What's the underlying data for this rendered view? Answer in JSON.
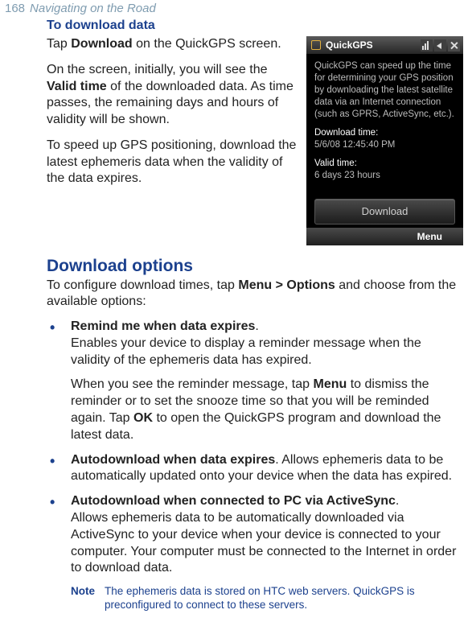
{
  "header": {
    "page_number": "168",
    "chapter_title": "Navigating on the Road"
  },
  "section": {
    "heading": "To download data"
  },
  "para1": {
    "pre": "Tap ",
    "b": "Download",
    "post": " on the QuickGPS screen."
  },
  "para2": {
    "pre": "On the screen, initially, you will see the ",
    "b": "Valid time",
    "post": " of the downloaded data. As time passes, the remaining days and hours of validity will be shown."
  },
  "para3": {
    "text": "To speed up GPS positioning, download the latest ephemeris data when the validity of the data expires."
  },
  "download_options": {
    "heading": "Download options",
    "intro_pre": "To configure download times, tap ",
    "intro_b": "Menu > Options",
    "intro_post": " and choose from the available options:"
  },
  "bullets": [
    {
      "b": "Remind me when data expires",
      "post": ".",
      "line2": "Enables your device to display a reminder message when the validity of the ephemeris data has expired.",
      "p2_pre": "When you see the reminder message, tap ",
      "p2_b1": "Menu",
      "p2_mid": " to dismiss the reminder or to set the snooze time so that you will be reminded again. Tap ",
      "p2_b2": "OK",
      "p2_post": " to open the QuickGPS program and download the latest data."
    },
    {
      "b": "Autodownload when data expires",
      "post": ". Allows ephemeris data to be automatically updated onto your device when the data has expired."
    },
    {
      "b": "Autodownload when connected to PC via ActiveSync",
      "post": ".",
      "line2": "Allows ephemeris data to be automatically downloaded via ActiveSync to your device when your device is connected to your computer. Your computer must be connected to the Internet in order to download data."
    }
  ],
  "note": {
    "label": "Note",
    "text": "The ephemeris data is stored on HTC web servers. QuickGPS is preconfigured to connect to these servers."
  },
  "phone": {
    "title": "QuickGPS",
    "body_gray": "QuickGPS can speed up the time for determining your GPS position by downloading the latest satellite data via an Internet connection (such as GPRS, ActiveSync, etc.).",
    "dl_label": "Download time:",
    "dl_value": "5/6/08 12:45:40 PM",
    "valid_label": "Valid time:",
    "valid_value": "6 days 23 hours",
    "button": "Download",
    "menu": "Menu"
  }
}
